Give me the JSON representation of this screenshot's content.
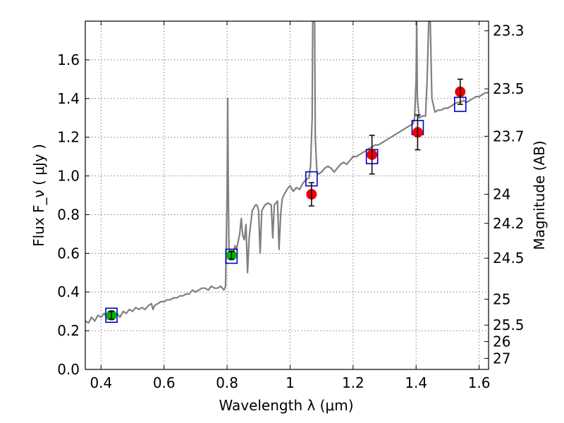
{
  "chart_data": {
    "type": "scatter",
    "xlabel": "Wavelength  λ (μm)",
    "ylabel": "Flux  F_ν  ( μJy )",
    "y2label": "Magnitude (AB)",
    "xlim": [
      0.35,
      1.63
    ],
    "ylim": [
      0.0,
      1.8
    ],
    "grid": true,
    "x_ticks": [
      0.4,
      0.6,
      0.8,
      1.0,
      1.2,
      1.4,
      1.6
    ],
    "x_tick_labels": [
      "0.4",
      "0.6",
      "0.8",
      "1",
      "1.2",
      "1.4",
      "1.6"
    ],
    "y_ticks": [
      0.0,
      0.2,
      0.4,
      0.6,
      0.8,
      1.0,
      1.2,
      1.4,
      1.6
    ],
    "y_tick_labels": [
      "0.0",
      "0.2",
      "0.4",
      "0.6",
      "0.8",
      "1.0",
      "1.2",
      "1.4",
      "1.6"
    ],
    "y2_ticks": [
      {
        "label": "23.3",
        "flux": 1.75
      },
      {
        "label": "23.5",
        "flux": 1.45
      },
      {
        "label": "23.7",
        "flux": 1.205
      },
      {
        "label": "24",
        "flux": 0.905
      },
      {
        "label": "24.2",
        "flux": 0.755
      },
      {
        "label": "24.5",
        "flux": 0.575
      },
      {
        "label": "25",
        "flux": 0.363
      },
      {
        "label": "25.5",
        "flux": 0.229
      },
      {
        "label": "26",
        "flux": 0.144
      },
      {
        "label": "27",
        "flux": 0.057
      }
    ],
    "colors": {
      "sed_line": "#808080",
      "model_box": "#0000cc",
      "green_points": "#00b000",
      "red_points": "#ee0000",
      "error_bars": "#000000",
      "grid": "#7f7f7f"
    },
    "series": [
      {
        "type": "line",
        "color": "#808080",
        "points": [
          [
            0.35,
            0.25
          ],
          [
            0.36,
            0.24
          ],
          [
            0.37,
            0.27
          ],
          [
            0.38,
            0.25
          ],
          [
            0.39,
            0.28
          ],
          [
            0.4,
            0.27
          ],
          [
            0.41,
            0.29
          ],
          [
            0.42,
            0.26
          ],
          [
            0.43,
            0.27
          ],
          [
            0.44,
            0.28
          ],
          [
            0.45,
            0.29
          ],
          [
            0.46,
            0.27
          ],
          [
            0.47,
            0.3
          ],
          [
            0.48,
            0.29
          ],
          [
            0.49,
            0.31
          ],
          [
            0.5,
            0.3
          ],
          [
            0.51,
            0.32
          ],
          [
            0.52,
            0.31
          ],
          [
            0.53,
            0.32
          ],
          [
            0.54,
            0.31
          ],
          [
            0.55,
            0.33
          ],
          [
            0.56,
            0.34
          ],
          [
            0.565,
            0.31
          ],
          [
            0.57,
            0.33
          ],
          [
            0.58,
            0.34
          ],
          [
            0.59,
            0.35
          ],
          [
            0.6,
            0.35
          ],
          [
            0.61,
            0.36
          ],
          [
            0.62,
            0.36
          ],
          [
            0.63,
            0.37
          ],
          [
            0.64,
            0.37
          ],
          [
            0.65,
            0.38
          ],
          [
            0.66,
            0.38
          ],
          [
            0.67,
            0.39
          ],
          [
            0.68,
            0.39
          ],
          [
            0.69,
            0.41
          ],
          [
            0.7,
            0.4
          ],
          [
            0.71,
            0.41
          ],
          [
            0.72,
            0.42
          ],
          [
            0.73,
            0.42
          ],
          [
            0.74,
            0.41
          ],
          [
            0.75,
            0.43
          ],
          [
            0.76,
            0.42
          ],
          [
            0.77,
            0.42
          ],
          [
            0.78,
            0.43
          ],
          [
            0.79,
            0.41
          ],
          [
            0.795,
            0.43
          ],
          [
            0.8,
            0.9
          ],
          [
            0.802,
            1.4
          ],
          [
            0.804,
            0.9
          ],
          [
            0.806,
            0.62
          ],
          [
            0.81,
            0.6
          ],
          [
            0.82,
            0.6
          ],
          [
            0.825,
            0.64
          ],
          [
            0.83,
            0.62
          ],
          [
            0.84,
            0.7
          ],
          [
            0.845,
            0.78
          ],
          [
            0.85,
            0.69
          ],
          [
            0.855,
            0.67
          ],
          [
            0.86,
            0.75
          ],
          [
            0.865,
            0.5
          ],
          [
            0.87,
            0.68
          ],
          [
            0.88,
            0.82
          ],
          [
            0.89,
            0.85
          ],
          [
            0.895,
            0.85
          ],
          [
            0.9,
            0.82
          ],
          [
            0.905,
            0.6
          ],
          [
            0.91,
            0.82
          ],
          [
            0.92,
            0.85
          ],
          [
            0.93,
            0.86
          ],
          [
            0.94,
            0.85
          ],
          [
            0.945,
            0.68
          ],
          [
            0.95,
            0.85
          ],
          [
            0.96,
            0.87
          ],
          [
            0.965,
            0.62
          ],
          [
            0.97,
            0.8
          ],
          [
            0.975,
            0.88
          ],
          [
            0.98,
            0.9
          ],
          [
            0.99,
            0.93
          ],
          [
            1.0,
            0.95
          ],
          [
            1.01,
            0.92
          ],
          [
            1.02,
            0.94
          ],
          [
            1.03,
            0.93
          ],
          [
            1.04,
            0.96
          ],
          [
            1.05,
            0.98
          ],
          [
            1.06,
            0.99
          ],
          [
            1.065,
            1.05
          ],
          [
            1.07,
            1.3
          ],
          [
            1.072,
            1.8
          ],
          [
            1.078,
            1.8
          ],
          [
            1.08,
            1.2
          ],
          [
            1.085,
            1.02
          ],
          [
            1.09,
            1.01
          ],
          [
            1.1,
            1.02
          ],
          [
            1.11,
            1.04
          ],
          [
            1.12,
            1.05
          ],
          [
            1.13,
            1.04
          ],
          [
            1.14,
            1.02
          ],
          [
            1.15,
            1.04
          ],
          [
            1.16,
            1.06
          ],
          [
            1.17,
            1.07
          ],
          [
            1.18,
            1.06
          ],
          [
            1.19,
            1.08
          ],
          [
            1.2,
            1.1
          ],
          [
            1.21,
            1.1
          ],
          [
            1.22,
            1.11
          ],
          [
            1.23,
            1.12
          ],
          [
            1.24,
            1.13
          ],
          [
            1.25,
            1.14
          ],
          [
            1.26,
            1.15
          ],
          [
            1.27,
            1.16
          ],
          [
            1.28,
            1.16
          ],
          [
            1.29,
            1.17
          ],
          [
            1.3,
            1.18
          ],
          [
            1.31,
            1.19
          ],
          [
            1.32,
            1.2
          ],
          [
            1.33,
            1.21
          ],
          [
            1.34,
            1.22
          ],
          [
            1.35,
            1.23
          ],
          [
            1.36,
            1.24
          ],
          [
            1.37,
            1.25
          ],
          [
            1.38,
            1.26
          ],
          [
            1.39,
            1.27
          ],
          [
            1.395,
            1.3
          ],
          [
            1.4,
            1.5
          ],
          [
            1.402,
            1.8
          ],
          [
            1.404,
            1.4
          ],
          [
            1.41,
            1.3
          ],
          [
            1.42,
            1.31
          ],
          [
            1.43,
            1.31
          ],
          [
            1.435,
            1.5
          ],
          [
            1.44,
            1.8
          ],
          [
            1.445,
            1.8
          ],
          [
            1.45,
            1.4
          ],
          [
            1.46,
            1.33
          ],
          [
            1.47,
            1.34
          ],
          [
            1.48,
            1.34
          ],
          [
            1.49,
            1.35
          ],
          [
            1.5,
            1.35
          ],
          [
            1.51,
            1.36
          ],
          [
            1.52,
            1.37
          ],
          [
            1.53,
            1.38
          ],
          [
            1.54,
            1.38
          ],
          [
            1.55,
            1.39
          ],
          [
            1.56,
            1.38
          ],
          [
            1.57,
            1.39
          ],
          [
            1.58,
            1.4
          ],
          [
            1.59,
            1.41
          ],
          [
            1.6,
            1.41
          ],
          [
            1.61,
            1.42
          ],
          [
            1.62,
            1.43
          ],
          [
            1.63,
            1.43
          ]
        ]
      },
      {
        "type": "model_boxes",
        "color": "#0000cc",
        "points": [
          {
            "x": 0.433,
            "y": 0.28
          },
          {
            "x": 0.814,
            "y": 0.585
          },
          {
            "x": 1.068,
            "y": 0.985
          },
          {
            "x": 1.26,
            "y": 1.1
          },
          {
            "x": 1.405,
            "y": 1.25
          },
          {
            "x": 1.54,
            "y": 1.37
          }
        ]
      },
      {
        "type": "points",
        "color": "#00b000",
        "points": [
          {
            "x": 0.433,
            "y": 0.28,
            "err": 0.02
          },
          {
            "x": 0.814,
            "y": 0.59,
            "err": 0.02
          }
        ]
      },
      {
        "type": "points",
        "color": "#ee0000",
        "points": [
          {
            "x": 1.068,
            "y": 0.905,
            "err": 0.06
          },
          {
            "x": 1.26,
            "y": 1.11,
            "err": 0.1
          },
          {
            "x": 1.405,
            "y": 1.225,
            "err": 0.09
          },
          {
            "x": 1.54,
            "y": 1.435,
            "err": 0.065
          }
        ]
      }
    ]
  }
}
